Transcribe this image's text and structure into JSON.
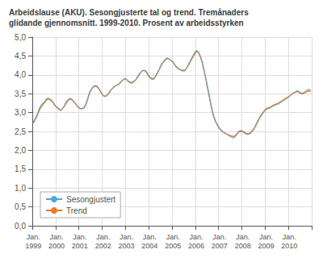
{
  "chart_data": {
    "type": "line",
    "title": "Arbeidslause (AKU). Sesongjusterte tal og trend. Tremånaders\nglidande gjennomsnitt. 1999-2010. Prosent av arbeidsstyrken",
    "categories": [
      "Jan.\n1999",
      null,
      null,
      null,
      null,
      null,
      null,
      null,
      null,
      null,
      null,
      null,
      "Jan.\n2000",
      null,
      null,
      null,
      null,
      null,
      null,
      null,
      null,
      null,
      null,
      null,
      "Jan.\n2001",
      null,
      null,
      null,
      null,
      null,
      null,
      null,
      null,
      null,
      null,
      null,
      "Jan.\n2002",
      null,
      null,
      null,
      null,
      null,
      null,
      null,
      null,
      null,
      null,
      null,
      "Jan.\n2003",
      null,
      null,
      null,
      null,
      null,
      null,
      null,
      null,
      null,
      null,
      null,
      "Jan.\n2004",
      null,
      null,
      null,
      null,
      null,
      null,
      null,
      null,
      null,
      null,
      null,
      "Jan.\n2005",
      null,
      null,
      null,
      null,
      null,
      null,
      null,
      null,
      null,
      null,
      null,
      "Jan.\n2006",
      null,
      null,
      null,
      null,
      null,
      null,
      null,
      null,
      null,
      null,
      null,
      "Jan.\n2007",
      null,
      null,
      null,
      null,
      null,
      null,
      null,
      null,
      null,
      null,
      null,
      "Jan.\n2008",
      null,
      null,
      null,
      null,
      null,
      null,
      null,
      null,
      null,
      null,
      null,
      "Jan.\n2009",
      null,
      null,
      null,
      null,
      null,
      null,
      null,
      null,
      null,
      null,
      null,
      "Jan.\n2010",
      null,
      null,
      null,
      null,
      null,
      null,
      null,
      null,
      null,
      null,
      null
    ],
    "series": [
      {
        "name": "Sesongjustert",
        "color": "#4aa8d8",
        "values": [
          2.75,
          2.85,
          2.95,
          3.1,
          3.2,
          3.25,
          3.3,
          3.38,
          3.38,
          3.35,
          3.3,
          3.2,
          3.15,
          3.12,
          3.05,
          3.1,
          3.18,
          3.3,
          3.35,
          3.38,
          3.35,
          3.28,
          3.22,
          3.15,
          3.12,
          3.1,
          3.12,
          3.2,
          3.35,
          3.55,
          3.62,
          3.7,
          3.72,
          3.7,
          3.62,
          3.52,
          3.45,
          3.42,
          3.45,
          3.5,
          3.6,
          3.65,
          3.7,
          3.72,
          3.75,
          3.8,
          3.85,
          3.9,
          3.88,
          3.82,
          3.78,
          3.78,
          3.82,
          3.88,
          3.98,
          4.05,
          4.1,
          4.12,
          4.08,
          4.0,
          3.92,
          3.88,
          3.88,
          3.95,
          4.05,
          4.15,
          4.28,
          4.35,
          4.42,
          4.45,
          4.42,
          4.38,
          4.35,
          4.25,
          4.18,
          4.15,
          4.12,
          4.1,
          4.1,
          4.18,
          4.28,
          4.38,
          4.48,
          4.58,
          4.65,
          4.62,
          4.5,
          4.35,
          4.12,
          3.88,
          3.62,
          3.35,
          3.08,
          2.88,
          2.75,
          2.65,
          2.58,
          2.52,
          2.48,
          2.45,
          2.42,
          2.38,
          2.35,
          2.32,
          2.35,
          2.42,
          2.48,
          2.5,
          2.48,
          2.45,
          2.42,
          2.42,
          2.45,
          2.5,
          2.58,
          2.68,
          2.78,
          2.88,
          2.95,
          3.02,
          3.08,
          3.1,
          3.12,
          3.15,
          3.18,
          3.2,
          3.22,
          3.25,
          3.28,
          3.32,
          3.35,
          3.38,
          3.42,
          3.48,
          3.52,
          3.55,
          3.58,
          3.56,
          3.52,
          3.52,
          3.55,
          3.6,
          3.62,
          3.6
        ]
      },
      {
        "name": "Trend",
        "color": "#f07820",
        "values": [
          2.72,
          2.82,
          2.92,
          3.05,
          3.15,
          3.22,
          3.28,
          3.35,
          3.36,
          3.33,
          3.28,
          3.2,
          3.14,
          3.1,
          3.06,
          3.1,
          3.17,
          3.26,
          3.33,
          3.36,
          3.34,
          3.28,
          3.22,
          3.15,
          3.11,
          3.1,
          3.12,
          3.2,
          3.35,
          3.52,
          3.62,
          3.68,
          3.7,
          3.68,
          3.62,
          3.53,
          3.45,
          3.43,
          3.46,
          3.52,
          3.6,
          3.65,
          3.7,
          3.72,
          3.75,
          3.8,
          3.85,
          3.9,
          3.88,
          3.83,
          3.8,
          3.8,
          3.83,
          3.88,
          3.96,
          4.04,
          4.1,
          4.12,
          4.1,
          4.02,
          3.94,
          3.9,
          3.9,
          3.96,
          4.05,
          4.15,
          4.26,
          4.33,
          4.4,
          4.44,
          4.42,
          4.38,
          4.34,
          4.26,
          4.2,
          4.16,
          4.13,
          4.12,
          4.12,
          4.18,
          4.26,
          4.36,
          4.45,
          4.54,
          4.62,
          4.6,
          4.5,
          4.35,
          4.12,
          3.88,
          3.62,
          3.36,
          3.1,
          2.9,
          2.76,
          2.66,
          2.58,
          2.52,
          2.48,
          2.45,
          2.42,
          2.4,
          2.38,
          2.36,
          2.38,
          2.44,
          2.5,
          2.52,
          2.5,
          2.47,
          2.44,
          2.44,
          2.47,
          2.52,
          2.6,
          2.7,
          2.8,
          2.9,
          2.97,
          3.04,
          3.1,
          3.12,
          3.14,
          3.17,
          3.2,
          3.22,
          3.24,
          3.27,
          3.3,
          3.34,
          3.37,
          3.4,
          3.43,
          3.48,
          3.52,
          3.54,
          3.56,
          3.54,
          3.5,
          3.5,
          3.53,
          3.56,
          3.58,
          3.56
        ]
      }
    ],
    "ylim": [
      0.0,
      5.0
    ],
    "yticks": [
      {
        "value": 0.0,
        "label": "0,0"
      },
      {
        "value": 0.5,
        "label": "0,5"
      },
      {
        "value": 1.0,
        "label": "1,0"
      },
      {
        "value": 1.5,
        "label": "1,5"
      },
      {
        "value": 2.0,
        "label": "2,0"
      },
      {
        "value": 2.5,
        "label": "2,5"
      },
      {
        "value": 3.0,
        "label": "3,0"
      },
      {
        "value": 3.5,
        "label": "3,5"
      },
      {
        "value": 4.0,
        "label": "4,0"
      },
      {
        "value": 4.5,
        "label": "4,5"
      },
      {
        "value": 5.0,
        "label": "5,0"
      }
    ],
    "grid": true,
    "legend": "lower left"
  }
}
